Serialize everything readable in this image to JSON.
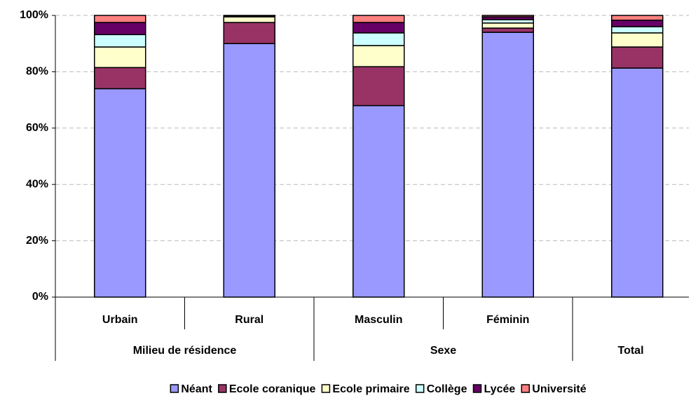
{
  "chart_data": {
    "type": "stacked_bar",
    "categories": [
      "Urbain",
      "Rural",
      "Masculin",
      "Féminin",
      null
    ],
    "category_groups": [
      "Milieu de résidence",
      "Milieu de résidence",
      "Sexe",
      "Sexe",
      "Total"
    ],
    "series": [
      {
        "name": "Néant",
        "color": "#9999ff",
        "values": [
          74,
          90,
          68,
          94,
          81.3
        ]
      },
      {
        "name": "Ecole coranique",
        "color": "#993366",
        "values": [
          7.5,
          7.5,
          13.8,
          1.5,
          7.5
        ]
      },
      {
        "name": "Ecole primaire",
        "color": "#ffffcc",
        "values": [
          7.3,
          2,
          7.5,
          1.8,
          5
        ]
      },
      {
        "name": "Collège",
        "color": "#ccffff",
        "values": [
          4.4,
          0.3,
          4.5,
          1.2,
          2.2
        ]
      },
      {
        "name": "Lycée",
        "color": "#660066",
        "values": [
          4.3,
          0.1,
          3.7,
          1,
          2.3
        ]
      },
      {
        "name": "Université",
        "color": "#ff8080",
        "values": [
          2.5,
          0.1,
          2.5,
          0.5,
          1.7
        ]
      }
    ],
    "ylim": [
      0,
      100
    ],
    "yticks": [
      {
        "value": 0,
        "label": "0%"
      },
      {
        "value": 20,
        "label": "20%"
      },
      {
        "value": 40,
        "label": "40%"
      },
      {
        "value": 60,
        "label": "60%"
      },
      {
        "value": 80,
        "label": "80%"
      },
      {
        "value": 100,
        "label": "100%"
      }
    ],
    "grid": true,
    "legend": "bottom"
  }
}
